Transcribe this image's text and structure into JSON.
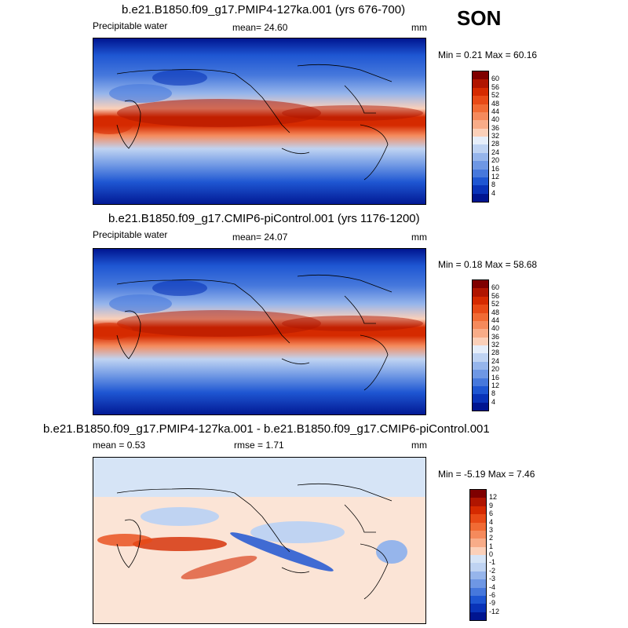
{
  "season": "SON",
  "panels": [
    {
      "title": "b.e21.B1850.f09_g17.PMIP4-127ka.001 (yrs 676-700)",
      "field": "Precipitable water",
      "mean_text": "mean=  24.60",
      "units": "mm",
      "minmax": "Min =   0.21 Max =  60.16",
      "colorbar": {
        "labels": [
          "60",
          "56",
          "52",
          "48",
          "44",
          "40",
          "36",
          "32",
          "28",
          "24",
          "20",
          "16",
          "12",
          "8",
          "4"
        ],
        "colors": [
          "#7f0000",
          "#b01500",
          "#d52a00",
          "#e84a16",
          "#f16b34",
          "#f58a5c",
          "#f8ac88",
          "#fbd0b9",
          "#e6eefa",
          "#bfd3f2",
          "#96b5eb",
          "#6e97e4",
          "#4678dc",
          "#1e56d2",
          "#0933b8",
          "#001590"
        ]
      }
    },
    {
      "title": "b.e21.B1850.f09_g17.CMIP6-piControl.001 (yrs 1176-1200)",
      "field": "Precipitable water",
      "mean_text": "mean=  24.07",
      "units": "mm",
      "minmax": "Min =   0.18 Max =  58.68",
      "colorbar": {
        "labels": [
          "60",
          "56",
          "52",
          "48",
          "44",
          "40",
          "36",
          "32",
          "28",
          "24",
          "20",
          "16",
          "12",
          "8",
          "4"
        ],
        "colors": [
          "#7f0000",
          "#b01500",
          "#d52a00",
          "#e84a16",
          "#f16b34",
          "#f58a5c",
          "#f8ac88",
          "#fbd0b9",
          "#e6eefa",
          "#bfd3f2",
          "#96b5eb",
          "#6e97e4",
          "#4678dc",
          "#1e56d2",
          "#0933b8",
          "#001590"
        ]
      }
    },
    {
      "title": "b.e21.B1850.f09_g17.PMIP4-127ka.001 - b.e21.B1850.f09_g17.CMIP6-piControl.001",
      "mean_text": "mean =   0.53",
      "rmse_text": "rmse =   1.71",
      "units": "mm",
      "minmax": "Min =  -5.19 Max =   7.46",
      "colorbar": {
        "labels": [
          "12",
          "9",
          "6",
          "4",
          "3",
          "2",
          "1",
          "0",
          "-1",
          "-2",
          "-3",
          "-4",
          "-6",
          "-9",
          "-12"
        ],
        "colors": [
          "#7f0000",
          "#b01500",
          "#d52a00",
          "#e84a16",
          "#f16b34",
          "#f58a5c",
          "#f8ac88",
          "#fbd0b9",
          "#d6e4f6",
          "#bfd3f2",
          "#96b5eb",
          "#6e97e4",
          "#4678dc",
          "#1e56d2",
          "#0933b8",
          "#001590"
        ]
      }
    }
  ]
}
